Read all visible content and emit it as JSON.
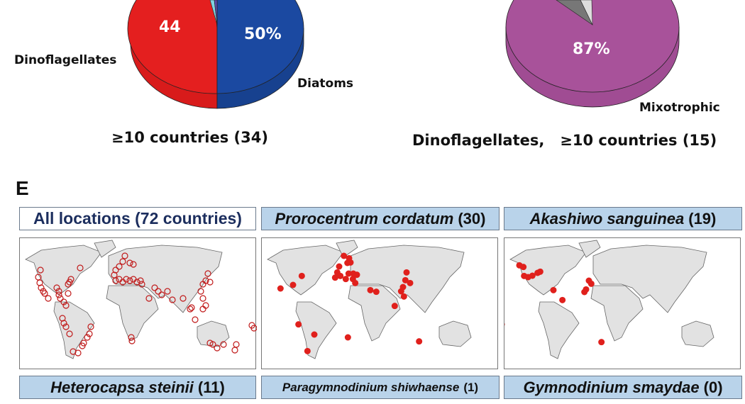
{
  "panel_label": "E",
  "chart_data": [
    {
      "type": "pie",
      "title": "≥10 countries (34)",
      "slices": [
        {
          "name": "Diatoms",
          "label": "50%",
          "color": "#1b49a1"
        },
        {
          "name": "Dinoflagellates",
          "label": "44",
          "color": "#e41f1f"
        },
        {
          "name": "",
          "label": "",
          "color": "#7ed3e0"
        },
        {
          "name": "",
          "label": "",
          "color": "#5b4aa8"
        }
      ]
    },
    {
      "type": "pie",
      "title": "Dinoflagellates,   ≥10 countries (15)",
      "slices": [
        {
          "name": "Mixotrophic",
          "label": "87%",
          "color": "#a8529a"
        },
        {
          "name": "",
          "label": "",
          "color": "#777777"
        },
        {
          "name": "",
          "label": "",
          "color": "#dddddd"
        }
      ]
    }
  ],
  "maps": [
    {
      "title": "All locations (72 countries)",
      "species": "",
      "count": ""
    },
    {
      "title": "",
      "species": "Prorocentrum cordatum",
      "count": "(30)"
    },
    {
      "title": "",
      "species": "Akashiwo sanguinea",
      "count": "(19)"
    }
  ],
  "bottom_labels": [
    {
      "species": "Heterocapsa steinii",
      "count": "(11)"
    },
    {
      "species": "Paragymnodinium shiwhaense",
      "count": "(1)"
    },
    {
      "species": "Gymnodinium smaydae",
      "count": "(0)"
    }
  ],
  "colors": {
    "marker": "#e0201c",
    "land": "#e2e2e2",
    "title_box": "#b9d3ea",
    "title_text_all": "#1c2e5e"
  }
}
